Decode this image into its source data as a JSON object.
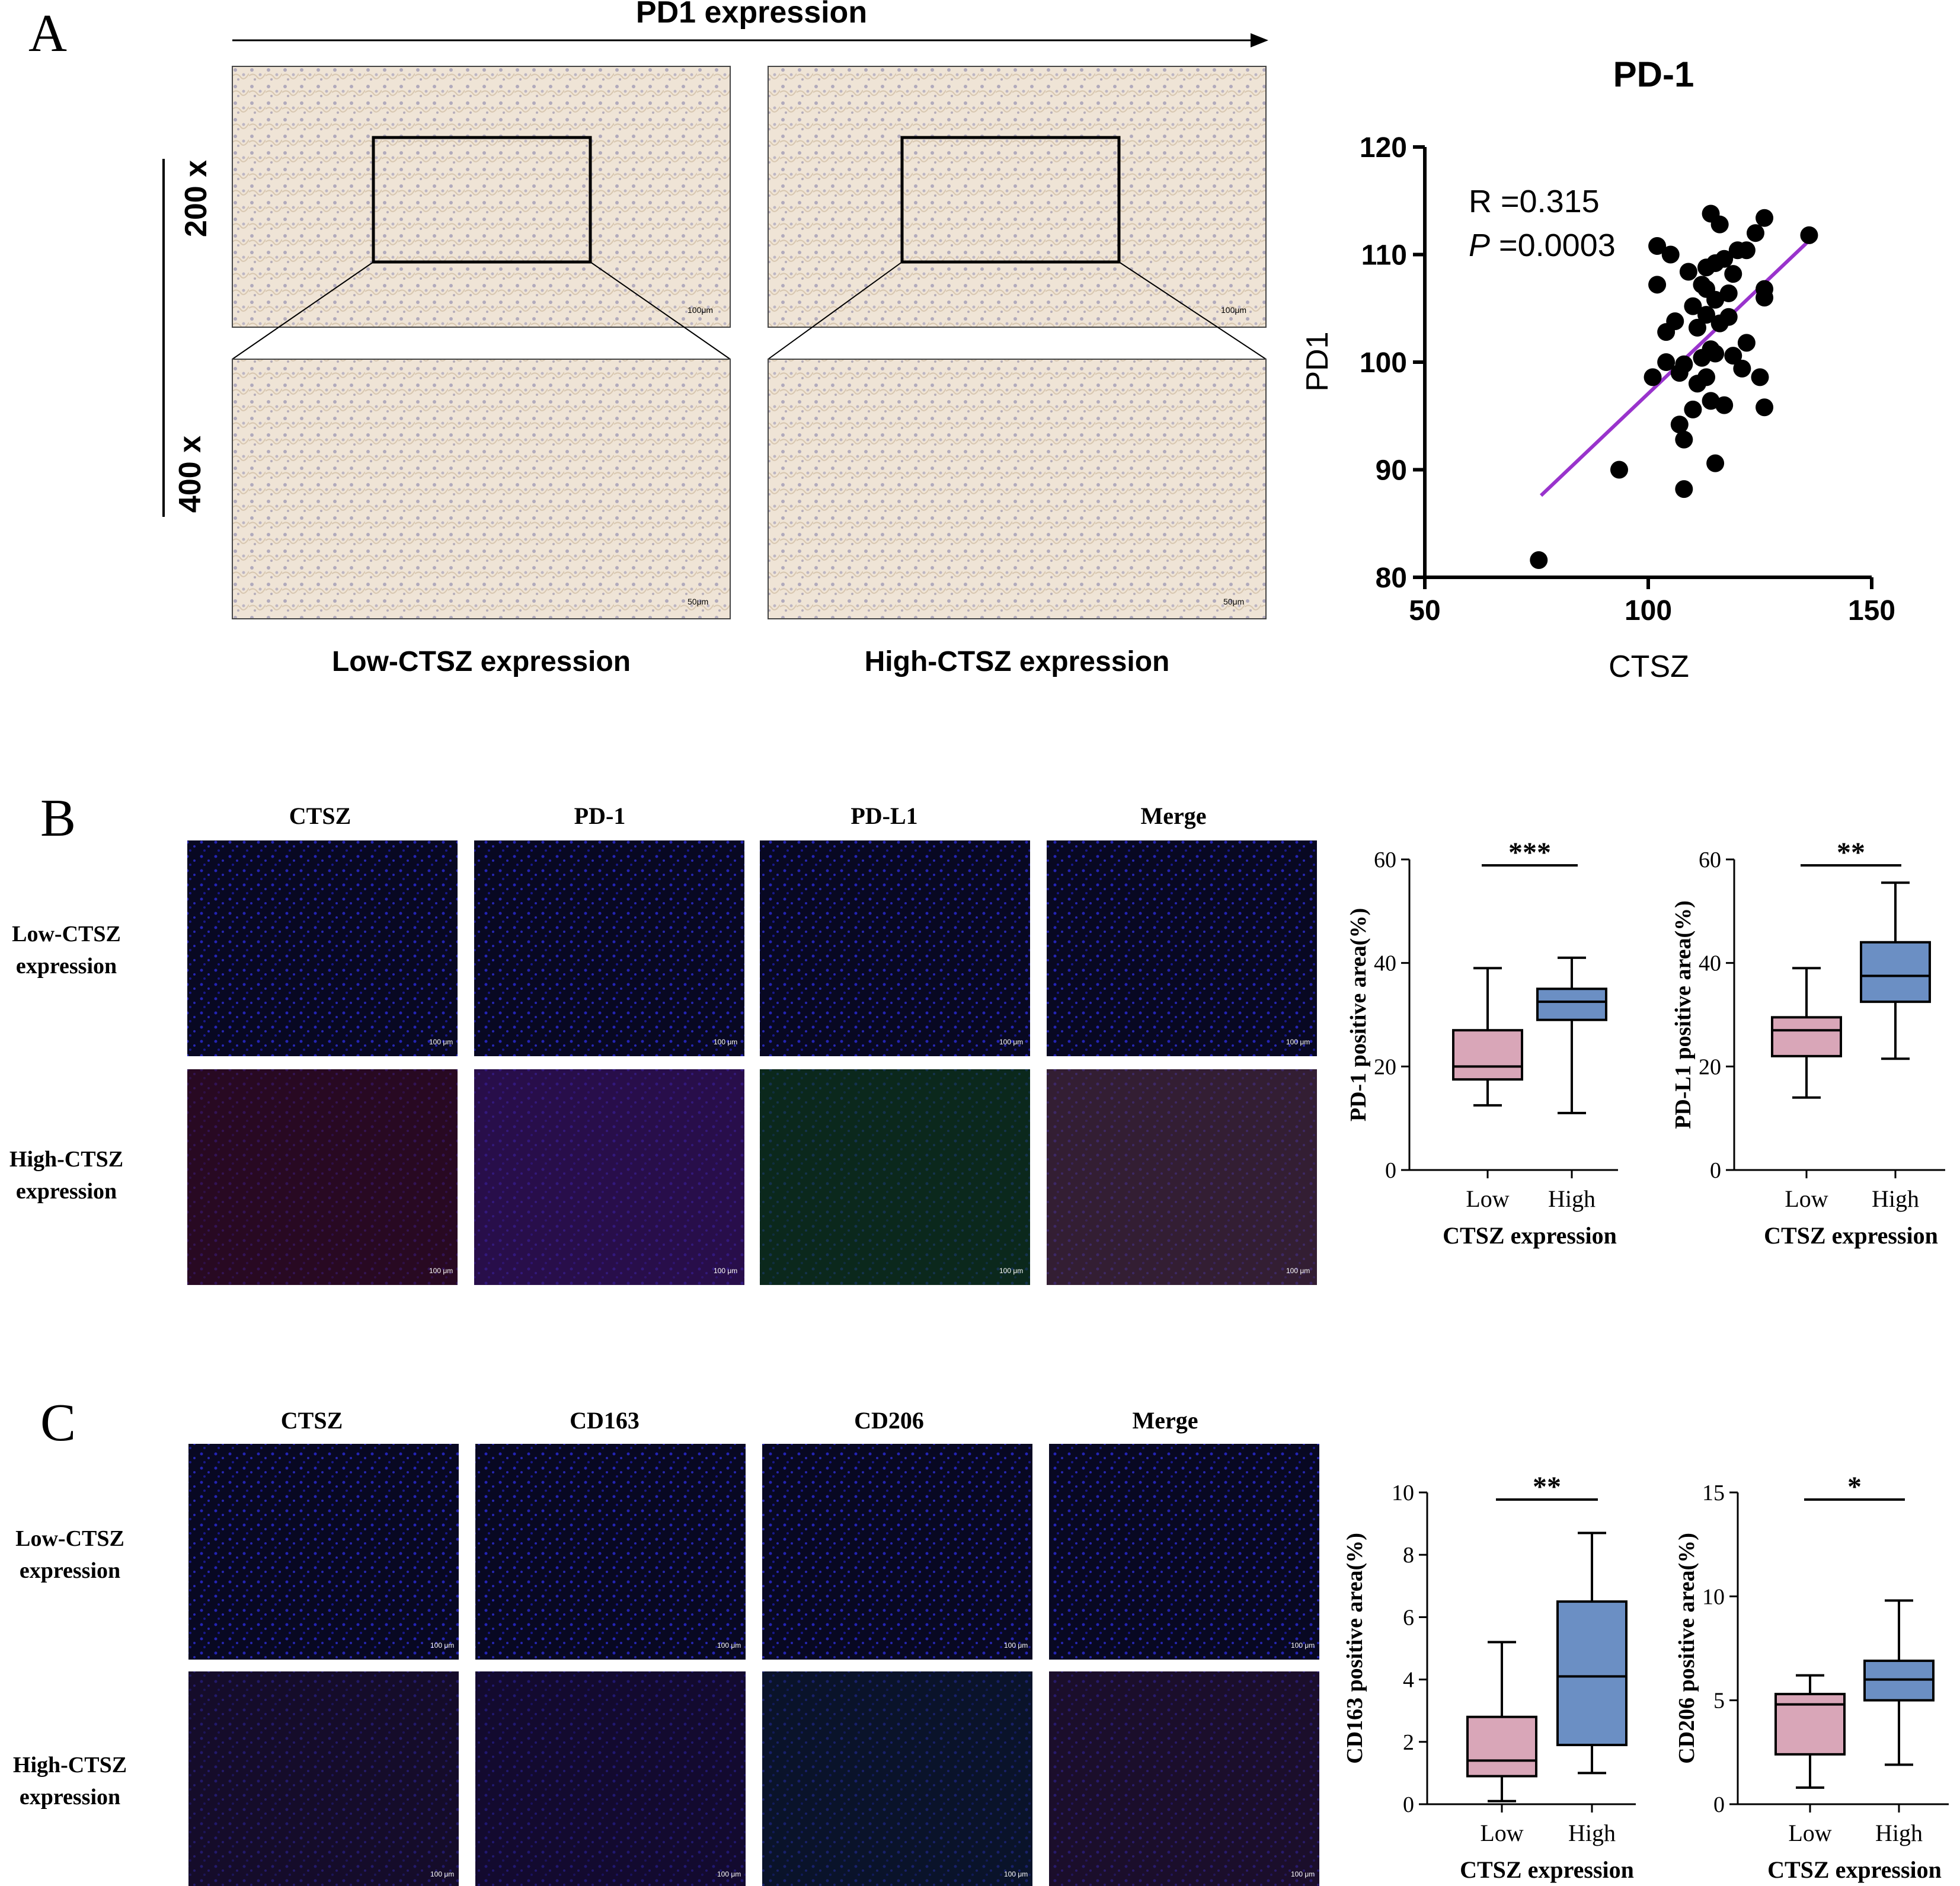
{
  "panelA": {
    "letter": "A",
    "top_label": "PD1 expression",
    "mag_200": "200 x",
    "mag_400": "400 x",
    "col_low": "Low-CTSZ expression",
    "col_high": "High-CTSZ expression",
    "scale_100": "100μm",
    "scale_50": "50μm"
  },
  "panelB": {
    "letter": "B",
    "columns": [
      "CTSZ",
      "PD-1",
      "PD-L1",
      "Merge"
    ],
    "row_low": [
      "Low-CTSZ",
      "expression"
    ],
    "row_high": [
      "High-CTSZ",
      "expression"
    ],
    "scale": "100 μm"
  },
  "panelC": {
    "letter": "C",
    "columns": [
      "CTSZ",
      "CD163",
      "CD206",
      "Merge"
    ],
    "row_low": [
      "Low-CTSZ",
      "expression"
    ],
    "row_high": [
      "High-CTSZ",
      "expression"
    ],
    "scale": "100 μm"
  },
  "colors": {
    "low_box": "#d9a6b8",
    "high_box": "#6b8fc4",
    "fit_line": "#9933cc",
    "ihc_bg": "#efe4d6"
  },
  "chart_data": [
    {
      "id": "scatter",
      "type": "scatter",
      "title": "PD-1",
      "xlabel": "CTSZ",
      "ylabel": "PD1",
      "xlim": [
        50,
        150
      ],
      "ylim": [
        80,
        120
      ],
      "xticks": [
        50,
        100,
        150
      ],
      "yticks": [
        80,
        90,
        100,
        110,
        120
      ],
      "annotation_r": "R =0.315",
      "annotation_p_italic": "P",
      "annotation_p": " =0.0003",
      "fit": {
        "x": [
          76,
          136
        ],
        "y": [
          87.6,
          111.3
        ]
      },
      "points": [
        [
          75.5,
          81.6
        ],
        [
          93.5,
          90
        ],
        [
          101,
          98.6
        ],
        [
          102,
          110.8
        ],
        [
          102,
          107.2
        ],
        [
          104,
          100
        ],
        [
          104,
          102.8
        ],
        [
          105,
          110
        ],
        [
          106,
          103.8
        ],
        [
          107,
          99
        ],
        [
          107,
          94.2
        ],
        [
          108,
          92.8
        ],
        [
          108,
          88.2
        ],
        [
          108,
          99.8
        ],
        [
          109,
          108.4
        ],
        [
          110,
          95.6
        ],
        [
          110,
          105.2
        ],
        [
          111,
          98
        ],
        [
          111,
          103.2
        ],
        [
          112,
          100.4
        ],
        [
          112,
          107.2
        ],
        [
          113,
          108.8
        ],
        [
          113,
          106.8
        ],
        [
          113,
          98.6
        ],
        [
          113,
          104.4
        ],
        [
          114,
          101.2
        ],
        [
          114,
          113.8
        ],
        [
          114,
          96.4
        ],
        [
          115,
          109.2
        ],
        [
          115,
          105.8
        ],
        [
          115,
          100.8
        ],
        [
          115,
          90.6
        ],
        [
          116,
          112.8
        ],
        [
          116,
          103.6
        ],
        [
          117,
          109.6
        ],
        [
          117,
          96
        ],
        [
          118,
          106.4
        ],
        [
          118,
          104.2
        ],
        [
          119,
          108.2
        ],
        [
          119,
          100.6
        ],
        [
          120,
          110.4
        ],
        [
          121,
          99.4
        ],
        [
          122,
          101.8
        ],
        [
          122,
          110.4
        ],
        [
          124,
          112
        ],
        [
          125,
          98.6
        ],
        [
          126,
          113.4
        ],
        [
          126,
          95.8
        ],
        [
          126,
          106.8
        ],
        [
          126,
          106
        ],
        [
          136,
          111.8
        ]
      ]
    },
    {
      "id": "b1",
      "type": "box",
      "ylabel": "PD-1 positive area(%)",
      "xlabel": "CTSZ expression",
      "categories": [
        "Low",
        "High"
      ],
      "ylim": [
        0,
        60
      ],
      "yticks": [
        0,
        20,
        40,
        60
      ],
      "boxes": [
        {
          "min": 12.5,
          "q1": 17.5,
          "median": 20,
          "q3": 27,
          "max": 39
        },
        {
          "min": 11,
          "q1": 29,
          "median": 32.5,
          "q3": 35,
          "max": 41
        }
      ],
      "significance": "***"
    },
    {
      "id": "b2",
      "type": "box",
      "ylabel": "PD-L1 positive area(%)",
      "xlabel": "CTSZ expression",
      "categories": [
        "Low",
        "High"
      ],
      "ylim": [
        0,
        60
      ],
      "yticks": [
        0,
        20,
        40,
        60
      ],
      "boxes": [
        {
          "min": 14,
          "q1": 22,
          "median": 27,
          "q3": 29.5,
          "max": 39
        },
        {
          "min": 21.5,
          "q1": 32.5,
          "median": 37.5,
          "q3": 44,
          "max": 55.5
        }
      ],
      "significance": "**"
    },
    {
      "id": "c1",
      "type": "box",
      "ylabel": "CD163 positive area(%)",
      "xlabel": "CTSZ expression",
      "categories": [
        "Low",
        "High"
      ],
      "ylim": [
        0,
        10
      ],
      "yticks": [
        0,
        2,
        4,
        6,
        8,
        10
      ],
      "boxes": [
        {
          "min": 0.1,
          "q1": 0.9,
          "median": 1.4,
          "q3": 2.8,
          "max": 5.2
        },
        {
          "min": 1,
          "q1": 1.9,
          "median": 4.1,
          "q3": 6.5,
          "max": 8.7
        }
      ],
      "significance": "**"
    },
    {
      "id": "c2",
      "type": "box",
      "ylabel": "CD206 positive area(%)",
      "xlabel": "CTSZ expression",
      "categories": [
        "Low",
        "High"
      ],
      "ylim": [
        0,
        15
      ],
      "yticks": [
        0,
        5,
        10,
        15
      ],
      "boxes": [
        {
          "min": 0.8,
          "q1": 2.4,
          "median": 4.8,
          "q3": 5.3,
          "max": 6.2
        },
        {
          "min": 1.9,
          "q1": 5,
          "median": 6,
          "q3": 6.9,
          "max": 9.8
        }
      ],
      "significance": "*"
    }
  ]
}
